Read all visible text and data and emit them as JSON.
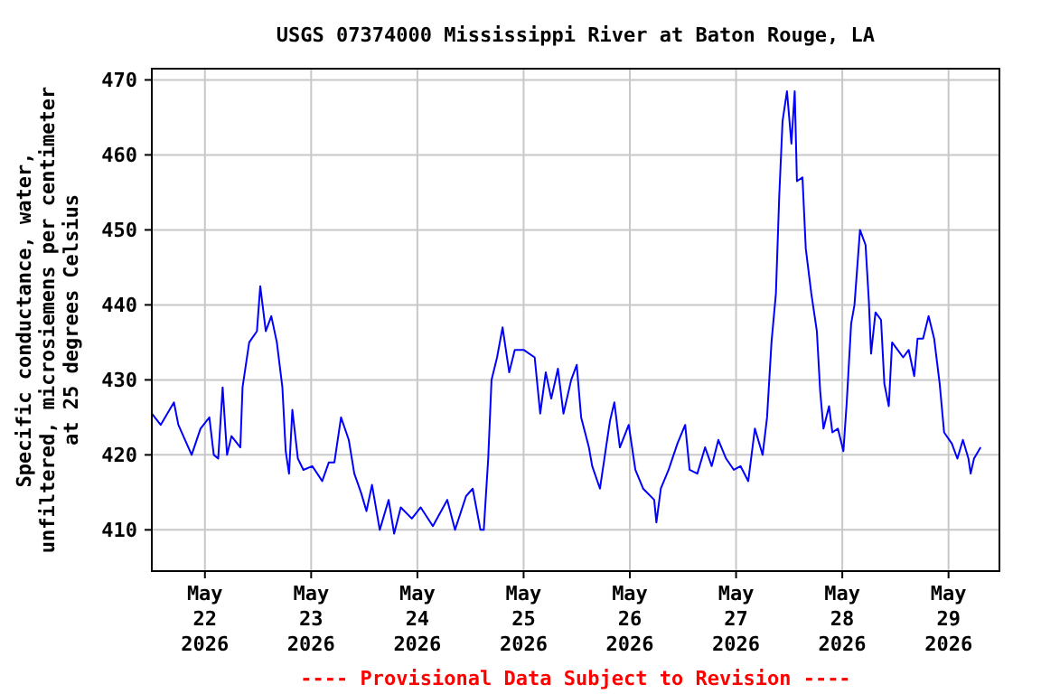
{
  "chart_data": {
    "type": "line",
    "title": "USGS 07374000 Mississippi River at Baton Rouge, LA",
    "ylabel": "Specific conductance, water,\nunfiltered, microsiemens per centimeter\nat 25 degrees Celsius",
    "annotations": [
      "---- Provisional Data Subject to Revision ----"
    ],
    "xlim": [
      "2026-05-21T12:00",
      "2026-05-29T11:30"
    ],
    "xticks": [
      {
        "value": "2026-05-22",
        "label": "May\n22\n2026"
      },
      {
        "value": "2026-05-23",
        "label": "May\n23\n2026"
      },
      {
        "value": "2026-05-24",
        "label": "May\n24\n2026"
      },
      {
        "value": "2026-05-25",
        "label": "May\n25\n2026"
      },
      {
        "value": "2026-05-26",
        "label": "May\n26\n2026"
      },
      {
        "value": "2026-05-27",
        "label": "May\n27\n2026"
      },
      {
        "value": "2026-05-28",
        "label": "May\n28\n2026"
      },
      {
        "value": "2026-05-29",
        "label": "May\n29\n2026"
      }
    ],
    "ylim": [
      404.5,
      471.5
    ],
    "yticks": [
      410,
      420,
      430,
      440,
      450,
      460,
      470
    ],
    "grid": true,
    "line_style": "solid",
    "marker": "none",
    "x": [
      "2026-05-21T12:00",
      "2026-05-21T14:00",
      "2026-05-21T17:00",
      "2026-05-21T18:00",
      "2026-05-21T21:00",
      "2026-05-21T23:00",
      "2026-05-22T01:00",
      "2026-05-22T02:00",
      "2026-05-22T03:00",
      "2026-05-22T04:00",
      "2026-05-22T05:00",
      "2026-05-22T06:00",
      "2026-05-22T08:00",
      "2026-05-22T08:30",
      "2026-05-22T10:00",
      "2026-05-22T11:45",
      "2026-05-22T12:30",
      "2026-05-22T13:45",
      "2026-05-22T15:00",
      "2026-05-22T16:15",
      "2026-05-22T17:30",
      "2026-05-22T18:15",
      "2026-05-22T19:00",
      "2026-05-22T19:45",
      "2026-05-22T21:00",
      "2026-05-22T22:15",
      "2026-05-23T00:15",
      "2026-05-23T02:30",
      "2026-05-23T04:00",
      "2026-05-23T05:15",
      "2026-05-23T06:45",
      "2026-05-23T08:30",
      "2026-05-23T09:45",
      "2026-05-23T11:15",
      "2026-05-23T12:30",
      "2026-05-23T13:45",
      "2026-05-23T15:30",
      "2026-05-23T17:30",
      "2026-05-23T18:45",
      "2026-05-23T20:15",
      "2026-05-23T22:45",
      "2026-05-24T00:45",
      "2026-05-24T03:30",
      "2026-05-24T06:45",
      "2026-05-24T08:30",
      "2026-05-24T11:00",
      "2026-05-24T12:30",
      "2026-05-24T14:15",
      "2026-05-24T15:00",
      "2026-05-24T16:00",
      "2026-05-24T16:45",
      "2026-05-24T18:00",
      "2026-05-24T19:15",
      "2026-05-24T20:45",
      "2026-05-24T22:00",
      "2026-05-25T00:00",
      "2026-05-25T02:30",
      "2026-05-25T03:45",
      "2026-05-25T05:00",
      "2026-05-25T06:15",
      "2026-05-25T07:45",
      "2026-05-25T09:00",
      "2026-05-25T10:45",
      "2026-05-25T12:00",
      "2026-05-25T13:00",
      "2026-05-25T14:45",
      "2026-05-25T15:30",
      "2026-05-25T17:15",
      "2026-05-25T18:30",
      "2026-05-25T19:30",
      "2026-05-25T20:30",
      "2026-05-25T21:45",
      "2026-05-25T23:45",
      "2026-05-26T01:15",
      "2026-05-26T03:00",
      "2026-05-26T05:30",
      "2026-05-26T06:00",
      "2026-05-26T07:00",
      "2026-05-26T08:45",
      "2026-05-26T10:45",
      "2026-05-26T12:30",
      "2026-05-26T13:30",
      "2026-05-26T15:15",
      "2026-05-26T17:00",
      "2026-05-26T18:30",
      "2026-05-26T20:00",
      "2026-05-26T21:45",
      "2026-05-26T23:30",
      "2026-05-27T01:00",
      "2026-05-27T02:45",
      "2026-05-27T04:15",
      "2026-05-27T06:00",
      "2026-05-27T07:00",
      "2026-05-27T08:00",
      "2026-05-27T09:00",
      "2026-05-27T09:45",
      "2026-05-27T10:30",
      "2026-05-27T11:30",
      "2026-05-27T12:30",
      "2026-05-27T13:15",
      "2026-05-27T13:45",
      "2026-05-27T15:00",
      "2026-05-27T15:45",
      "2026-05-27T17:00",
      "2026-05-27T18:15",
      "2026-05-27T19:00",
      "2026-05-27T19:45",
      "2026-05-27T21:00",
      "2026-05-27T21:45",
      "2026-05-27T23:00",
      "2026-05-28T00:15",
      "2026-05-28T01:00",
      "2026-05-28T02:00",
      "2026-05-28T02:45",
      "2026-05-28T04:00",
      "2026-05-28T05:15",
      "2026-05-28T06:00",
      "2026-05-28T06:30",
      "2026-05-28T07:30",
      "2026-05-28T08:45",
      "2026-05-28T09:30",
      "2026-05-28T10:30",
      "2026-05-28T11:15",
      "2026-05-28T12:30",
      "2026-05-28T13:45",
      "2026-05-28T15:00",
      "2026-05-28T16:15",
      "2026-05-28T17:00",
      "2026-05-28T18:15",
      "2026-05-28T19:30",
      "2026-05-28T20:45",
      "2026-05-28T22:00",
      "2026-05-28T23:00",
      "2026-05-29T00:45",
      "2026-05-29T02:00",
      "2026-05-29T03:15",
      "2026-05-29T04:30",
      "2026-05-29T05:00",
      "2026-05-29T05:45",
      "2026-05-29T07:15"
    ],
    "series": [
      {
        "color": "#0000ff",
        "values": [
          425.5,
          424,
          427,
          424,
          420,
          423.5,
          425,
          420,
          419.5,
          429,
          420,
          422.5,
          421,
          429,
          435,
          436.5,
          442.5,
          436.5,
          438.5,
          435,
          429,
          420.5,
          417.5,
          426,
          419.5,
          418,
          418.5,
          416.5,
          419,
          419,
          425,
          422,
          417.5,
          415,
          412.5,
          416,
          410,
          414,
          409.5,
          413,
          411.5,
          413,
          410.5,
          414,
          410,
          414.5,
          415.5,
          410,
          410,
          419.5,
          430,
          433,
          437,
          431,
          434,
          434,
          433,
          425.5,
          431,
          427.5,
          431.5,
          425.5,
          430,
          432,
          425,
          421,
          418.5,
          415.5,
          420.5,
          424.5,
          427,
          421,
          424,
          418,
          415.5,
          414,
          411,
          415.5,
          418,
          421.5,
          424,
          418,
          417.5,
          421,
          418.5,
          422,
          419.5,
          418,
          418.5,
          416.5,
          423.5,
          420,
          425,
          435,
          441.5,
          454.5,
          464.5,
          468.5,
          461.5,
          468.5,
          456.5,
          457,
          447.5,
          441.5,
          436.5,
          428.5,
          423.5,
          426.5,
          423,
          423.5,
          420.5,
          427,
          437.5,
          440,
          450,
          448,
          440.5,
          433.5,
          439,
          438,
          429.5,
          426.5,
          435,
          434,
          433,
          434,
          430.5,
          435.5,
          435.5,
          438.5,
          435.5,
          429.5,
          423,
          421.5,
          419.5,
          422,
          419.5,
          417.5,
          419.5,
          421
        ]
      }
    ]
  }
}
